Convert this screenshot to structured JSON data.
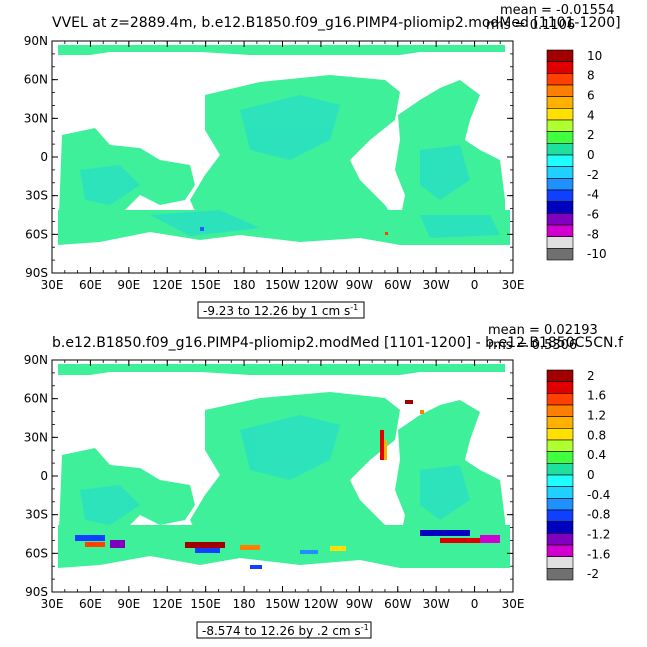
{
  "panels": [
    {
      "title": "VVEL at z=2889.4m, b.e12.B1850.f09_g16.PIMP4-pliomip2.modMed [1101-1200]",
      "mean": "mean = -0.01554",
      "rms": "rms = 0.1106",
      "range_label": "-9.23 to 12.26 by 1 cm s",
      "range_exp": "-1",
      "lat_labels": [
        "90N",
        "60N",
        "30N",
        "0",
        "30S",
        "60S",
        "90S"
      ],
      "lon_labels": [
        "30E",
        "60E",
        "90E",
        "120E",
        "150E",
        "180",
        "150W",
        "120W",
        "90W",
        "60W",
        "30W",
        "0",
        "30E"
      ],
      "colorbar_labels": [
        "10",
        "8",
        "6",
        "4",
        "2",
        "0",
        "-2",
        "-4",
        "-6",
        "-8",
        "-10"
      ]
    },
    {
      "title": "b.e12.B1850.f09_g16.PIMP4-pliomip2.modMed [1101-1200] - b.e12.B1850C5CN.f",
      "mean": "mean = 0.02193",
      "rms": "rms = 0.5306",
      "range_label": "-8.574 to 12.26 by .2 cm s",
      "range_exp": "-1",
      "lat_labels": [
        "90N",
        "60N",
        "30N",
        "0",
        "30S",
        "60S",
        "90S"
      ],
      "lon_labels": [
        "30E",
        "60E",
        "90E",
        "120E",
        "150E",
        "180",
        "150W",
        "120W",
        "90W",
        "60W",
        "30W",
        "0",
        "30E"
      ],
      "colorbar_labels": [
        "2",
        "1.6",
        "1.2",
        "0.8",
        "0.4",
        "0",
        "-0.4",
        "-0.8",
        "-1.2",
        "-1.6",
        "-2"
      ]
    }
  ],
  "colors": {
    "ocean_main": "#3ef09a",
    "ocean_alt": "#1fd8d8",
    "land": "#ffffff",
    "colorbar": [
      "#a00000",
      "#e00000",
      "#ff4000",
      "#ff8000",
      "#ffb000",
      "#ffe000",
      "#b0ff30",
      "#40ff40",
      "#20e0a0",
      "#20ffff",
      "#20d0ff",
      "#2090ff",
      "#1040ff",
      "#0000c0",
      "#8000c0",
      "#d000d0",
      "#e0e0e0",
      "#707070"
    ]
  }
}
